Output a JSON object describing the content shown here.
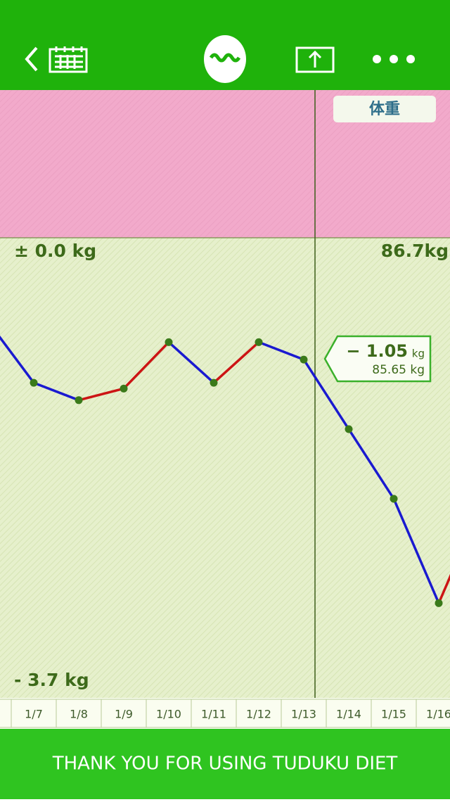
{
  "badge": "体重",
  "chart_data": {
    "type": "line",
    "categories": [
      null,
      "1/7",
      "1/8",
      "1/9",
      "1/10",
      "1/11",
      "1/12",
      "1/13",
      "1/14",
      "1/15",
      "1/16",
      null
    ],
    "values": [
      -0.73,
      -1.25,
      -1.4,
      -1.3,
      -0.9,
      -1.25,
      -0.9,
      -1.05,
      -1.65,
      -2.25,
      -3.15,
      -2.25
    ],
    "up_color": "#cc1414",
    "down_color": "#1a1ad0",
    "point_color": "#3a7a1a",
    "ylim": [
      -3.7,
      0
    ],
    "yticks": [
      {
        "value": 0,
        "label": "± 0.0 kg"
      },
      {
        "value": -3.7,
        "label": "- 3.7 kg"
      }
    ],
    "baseline_weight": "86.7kg",
    "annotation": {
      "change": "− 1.05",
      "change_unit": "kg",
      "weight": "85.65 kg"
    }
  },
  "footer": "THANK YOU FOR USING TUDUKU DIET"
}
